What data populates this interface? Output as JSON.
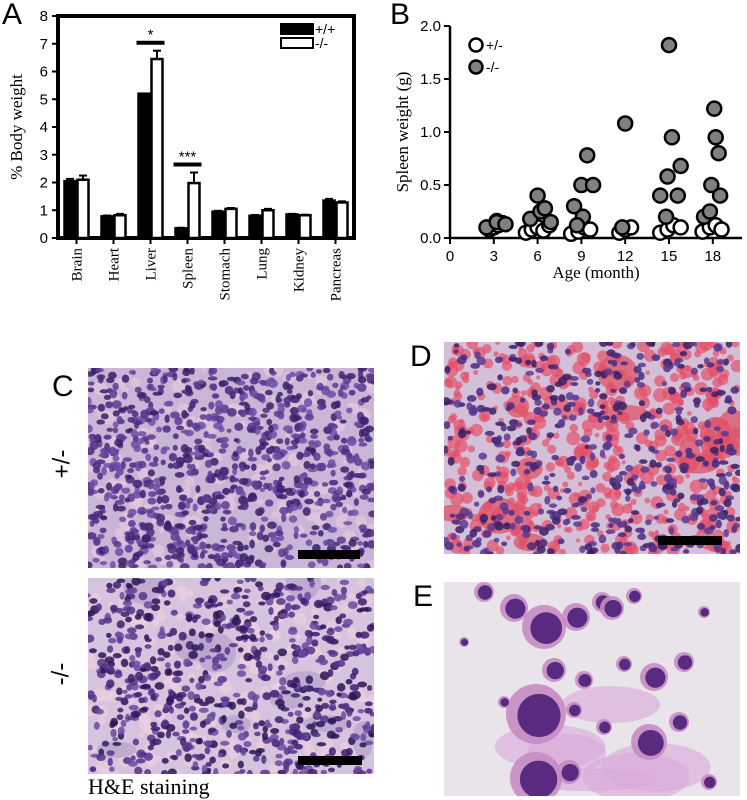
{
  "panels": {
    "A": "A",
    "B": "B",
    "C": "C",
    "D": "D",
    "E": "E"
  },
  "chart_data": [
    {
      "type": "bar",
      "panel": "A",
      "ylabel": "% Body weight",
      "ylim": [
        0,
        8
      ],
      "yticks": [
        0,
        1,
        2,
        3,
        4,
        5,
        6,
        7,
        8
      ],
      "categories": [
        "Brain",
        "Heart",
        "Liver",
        "Spleen",
        "Stomach",
        "Lung",
        "Kidney",
        "Pancreas"
      ],
      "series": [
        {
          "name": "+/+",
          "color": "#000000",
          "values": [
            2.05,
            0.78,
            5.2,
            0.35,
            0.95,
            0.8,
            0.85,
            1.35
          ],
          "errors": [
            0.08,
            0.03,
            0.0,
            0.02,
            0.03,
            0.03,
            0.02,
            0.06
          ]
        },
        {
          "name": "-/-",
          "color": "#ffffff",
          "values": [
            2.1,
            0.82,
            6.45,
            1.98,
            1.05,
            1.0,
            0.82,
            1.28
          ],
          "errors": [
            0.15,
            0.05,
            0.3,
            0.38,
            0.03,
            0.05,
            0.02,
            0.04
          ]
        }
      ],
      "annotations": [
        {
          "category": "Liver",
          "text": "*"
        },
        {
          "category": "Spleen",
          "text": "***"
        }
      ],
      "legend": "top-right"
    },
    {
      "type": "scatter",
      "panel": "B",
      "xlabel": "Age (month)",
      "ylabel": "Spleen weight (g)",
      "xlim": [
        0,
        20
      ],
      "ylim": [
        0,
        2.0
      ],
      "xticks": [
        0,
        3,
        6,
        9,
        12,
        15,
        18
      ],
      "yticks": [
        "0.0",
        "0.5",
        "1.0",
        "1.5",
        "2.0"
      ],
      "legend": "top-left",
      "series": [
        {
          "name": "+/-",
          "fill": "#ffffff",
          "points": [
            [
              2.7,
              0.08
            ],
            [
              3.0,
              0.1
            ],
            [
              3.3,
              0.12
            ],
            [
              3.6,
              0.14
            ],
            [
              3.2,
              0.16
            ],
            [
              5.2,
              0.05
            ],
            [
              5.6,
              0.08
            ],
            [
              6.0,
              0.1
            ],
            [
              6.4,
              0.07
            ],
            [
              6.8,
              0.12
            ],
            [
              8.3,
              0.04
            ],
            [
              8.8,
              0.06
            ],
            [
              9.2,
              0.1
            ],
            [
              9.6,
              0.08
            ],
            [
              11.6,
              0.05
            ],
            [
              12.0,
              0.08
            ],
            [
              12.4,
              0.1
            ],
            [
              14.4,
              0.05
            ],
            [
              14.9,
              0.08
            ],
            [
              15.3,
              0.12
            ],
            [
              15.8,
              0.1
            ],
            [
              17.3,
              0.06
            ],
            [
              17.8,
              0.1
            ],
            [
              18.2,
              0.12
            ],
            [
              18.6,
              0.08
            ]
          ]
        },
        {
          "name": "-/-",
          "fill": "#808080",
          "points": [
            [
              2.5,
              0.1
            ],
            [
              3.2,
              0.15
            ],
            [
              3.8,
              0.13
            ],
            [
              5.5,
              0.18
            ],
            [
              6.0,
              0.4
            ],
            [
              6.2,
              0.25
            ],
            [
              6.5,
              0.28
            ],
            [
              6.9,
              0.15
            ],
            [
              8.5,
              0.3
            ],
            [
              9.0,
              0.5
            ],
            [
              9.4,
              0.78
            ],
            [
              9.8,
              0.5
            ],
            [
              9.1,
              0.2
            ],
            [
              8.7,
              0.12
            ],
            [
              12.0,
              1.08
            ],
            [
              11.8,
              0.1
            ],
            [
              14.4,
              0.4
            ],
            [
              14.9,
              0.58
            ],
            [
              15.2,
              0.95
            ],
            [
              15.0,
              1.82
            ],
            [
              15.6,
              0.4
            ],
            [
              15.8,
              0.68
            ],
            [
              14.8,
              0.2
            ],
            [
              17.4,
              0.2
            ],
            [
              17.9,
              0.5
            ],
            [
              18.1,
              1.22
            ],
            [
              18.2,
              0.95
            ],
            [
              18.5,
              0.4
            ],
            [
              18.4,
              0.8
            ],
            [
              17.8,
              0.25
            ]
          ]
        }
      ]
    }
  ],
  "micrographs": {
    "C_top_label": "+/-",
    "C_bottom_label": "-/-",
    "C_caption": "H&E staining"
  }
}
